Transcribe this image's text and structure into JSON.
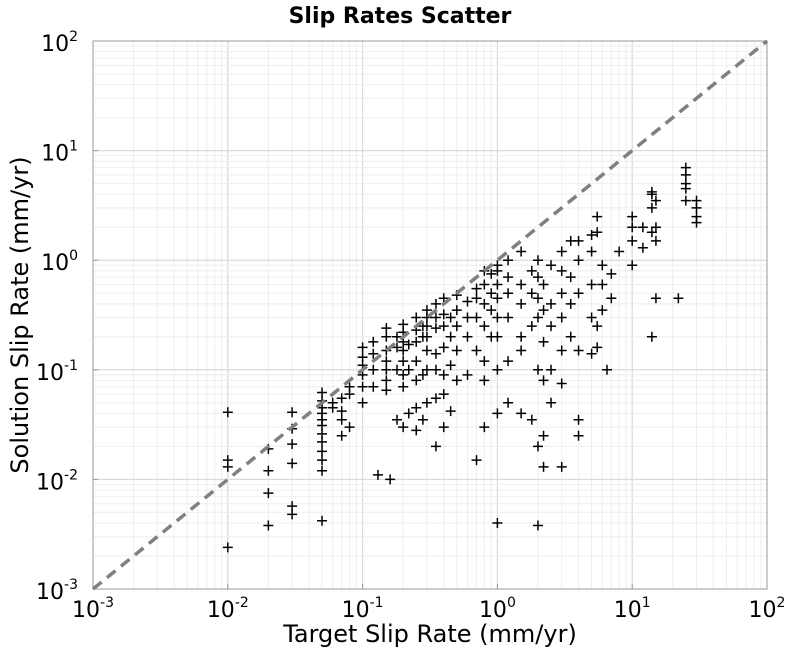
{
  "chart_data": {
    "type": "scatter",
    "title": "Slip Rates Scatter",
    "xlabel": "Target Slip Rate (mm/yr)",
    "ylabel": "Solution Slip Rate (mm/yr)",
    "xscale": "log",
    "yscale": "log",
    "xlim": [
      0.001,
      100
    ],
    "ylim": [
      0.001,
      100
    ],
    "grid": true,
    "legend": "none",
    "marker": "+",
    "x_ticks": [
      {
        "base": "10",
        "exp": "-3"
      },
      {
        "base": "10",
        "exp": "-2"
      },
      {
        "base": "10",
        "exp": "-1"
      },
      {
        "base": "10",
        "exp": "0"
      },
      {
        "base": "10",
        "exp": "1"
      },
      {
        "base": "10",
        "exp": "2"
      }
    ],
    "y_ticks": [
      {
        "base": "10",
        "exp": "-3"
      },
      {
        "base": "10",
        "exp": "-2"
      },
      {
        "base": "10",
        "exp": "-1"
      },
      {
        "base": "10",
        "exp": "0"
      },
      {
        "base": "10",
        "exp": "1"
      },
      {
        "base": "10",
        "exp": "2"
      }
    ],
    "reference_line": {
      "style": "dashed",
      "from": [
        0.001,
        0.001
      ],
      "to": [
        100,
        100
      ],
      "color": "#808080"
    },
    "colors": {
      "marker": "#000000",
      "grid": "#e6e6e6",
      "axes": "#999999"
    },
    "points": [
      [
        0.01,
        0.041
      ],
      [
        0.01,
        0.015
      ],
      [
        0.01,
        0.013
      ],
      [
        0.01,
        0.0024
      ],
      [
        0.02,
        0.0038
      ],
      [
        0.02,
        0.0075
      ],
      [
        0.02,
        0.012
      ],
      [
        0.02,
        0.019
      ],
      [
        0.03,
        0.0048
      ],
      [
        0.03,
        0.0057
      ],
      [
        0.03,
        0.014
      ],
      [
        0.03,
        0.021
      ],
      [
        0.03,
        0.029
      ],
      [
        0.03,
        0.041
      ],
      [
        0.05,
        0.0042
      ],
      [
        0.05,
        0.012
      ],
      [
        0.05,
        0.015
      ],
      [
        0.05,
        0.018
      ],
      [
        0.05,
        0.022
      ],
      [
        0.05,
        0.026
      ],
      [
        0.05,
        0.031
      ],
      [
        0.05,
        0.035
      ],
      [
        0.05,
        0.04
      ],
      [
        0.05,
        0.045
      ],
      [
        0.05,
        0.052
      ],
      [
        0.05,
        0.062
      ],
      [
        0.06,
        0.045
      ],
      [
        0.06,
        0.05
      ],
      [
        0.07,
        0.025
      ],
      [
        0.07,
        0.035
      ],
      [
        0.07,
        0.042
      ],
      [
        0.07,
        0.055
      ],
      [
        0.08,
        0.03
      ],
      [
        0.08,
        0.06
      ],
      [
        0.08,
        0.07
      ],
      [
        0.1,
        0.05
      ],
      [
        0.1,
        0.07
      ],
      [
        0.1,
        0.09
      ],
      [
        0.1,
        0.11
      ],
      [
        0.1,
        0.13
      ],
      [
        0.1,
        0.16
      ],
      [
        0.12,
        0.07
      ],
      [
        0.12,
        0.1
      ],
      [
        0.12,
        0.14
      ],
      [
        0.12,
        0.18
      ],
      [
        0.13,
        0.011
      ],
      [
        0.15,
        0.065
      ],
      [
        0.15,
        0.08
      ],
      [
        0.15,
        0.1
      ],
      [
        0.15,
        0.12
      ],
      [
        0.15,
        0.15
      ],
      [
        0.15,
        0.2
      ],
      [
        0.15,
        0.24
      ],
      [
        0.16,
        0.01
      ],
      [
        0.18,
        0.035
      ],
      [
        0.18,
        0.1
      ],
      [
        0.18,
        0.16
      ],
      [
        0.18,
        0.2
      ],
      [
        0.2,
        0.03
      ],
      [
        0.2,
        0.07
      ],
      [
        0.2,
        0.09
      ],
      [
        0.2,
        0.12
      ],
      [
        0.2,
        0.15
      ],
      [
        0.2,
        0.18
      ],
      [
        0.2,
        0.22
      ],
      [
        0.2,
        0.26
      ],
      [
        0.22,
        0.04
      ],
      [
        0.22,
        0.1
      ],
      [
        0.22,
        0.17
      ],
      [
        0.25,
        0.028
      ],
      [
        0.25,
        0.045
      ],
      [
        0.25,
        0.08
      ],
      [
        0.25,
        0.12
      ],
      [
        0.25,
        0.18
      ],
      [
        0.25,
        0.23
      ],
      [
        0.25,
        0.3
      ],
      [
        0.28,
        0.035
      ],
      [
        0.28,
        0.09
      ],
      [
        0.28,
        0.2
      ],
      [
        0.28,
        0.25
      ],
      [
        0.3,
        0.05
      ],
      [
        0.3,
        0.1
      ],
      [
        0.3,
        0.15
      ],
      [
        0.3,
        0.2
      ],
      [
        0.3,
        0.25
      ],
      [
        0.3,
        0.3
      ],
      [
        0.3,
        0.35
      ],
      [
        0.35,
        0.02
      ],
      [
        0.35,
        0.055
      ],
      [
        0.35,
        0.1
      ],
      [
        0.35,
        0.14
      ],
      [
        0.35,
        0.24
      ],
      [
        0.35,
        0.3
      ],
      [
        0.35,
        0.4
      ],
      [
        0.4,
        0.03
      ],
      [
        0.4,
        0.06
      ],
      [
        0.4,
        0.09
      ],
      [
        0.4,
        0.16
      ],
      [
        0.4,
        0.25
      ],
      [
        0.4,
        0.32
      ],
      [
        0.4,
        0.45
      ],
      [
        0.45,
        0.042
      ],
      [
        0.45,
        0.11
      ],
      [
        0.45,
        0.2
      ],
      [
        0.45,
        0.3
      ],
      [
        0.5,
        0.08
      ],
      [
        0.5,
        0.15
      ],
      [
        0.5,
        0.25
      ],
      [
        0.5,
        0.35
      ],
      [
        0.5,
        0.48
      ],
      [
        0.6,
        0.09
      ],
      [
        0.6,
        0.2
      ],
      [
        0.6,
        0.3
      ],
      [
        0.6,
        0.42
      ],
      [
        0.7,
        0.015
      ],
      [
        0.7,
        0.15
      ],
      [
        0.7,
        0.3
      ],
      [
        0.7,
        0.45
      ],
      [
        0.7,
        0.55
      ],
      [
        0.8,
        0.03
      ],
      [
        0.8,
        0.08
      ],
      [
        0.8,
        0.12
      ],
      [
        0.8,
        0.25
      ],
      [
        0.8,
        0.4
      ],
      [
        0.8,
        0.6
      ],
      [
        0.8,
        0.8
      ],
      [
        0.9,
        0.2
      ],
      [
        0.9,
        0.35
      ],
      [
        0.9,
        0.5
      ],
      [
        0.9,
        0.75
      ],
      [
        1.0,
        0.004
      ],
      [
        1.0,
        0.04
      ],
      [
        1.0,
        0.1
      ],
      [
        1.0,
        0.2
      ],
      [
        1.0,
        0.3
      ],
      [
        1.0,
        0.45
      ],
      [
        1.0,
        0.6
      ],
      [
        1.0,
        0.8
      ],
      [
        1.0,
        0.9
      ],
      [
        1.2,
        0.05
      ],
      [
        1.2,
        0.12
      ],
      [
        1.2,
        0.3
      ],
      [
        1.2,
        0.5
      ],
      [
        1.2,
        0.7
      ],
      [
        1.2,
        1.0
      ],
      [
        1.5,
        0.04
      ],
      [
        1.5,
        0.15
      ],
      [
        1.5,
        0.2
      ],
      [
        1.5,
        0.4
      ],
      [
        1.5,
        0.6
      ],
      [
        1.5,
        1.2
      ],
      [
        1.8,
        0.035
      ],
      [
        1.8,
        0.25
      ],
      [
        1.8,
        0.5
      ],
      [
        1.8,
        0.8
      ],
      [
        2.0,
        0.0038
      ],
      [
        2.0,
        0.02
      ],
      [
        2.0,
        0.1
      ],
      [
        2.0,
        0.3
      ],
      [
        2.0,
        0.45
      ],
      [
        2.0,
        0.7
      ],
      [
        2.0,
        1.0
      ],
      [
        2.2,
        0.013
      ],
      [
        2.2,
        0.025
      ],
      [
        2.2,
        0.08
      ],
      [
        2.2,
        0.18
      ],
      [
        2.2,
        0.35
      ],
      [
        2.2,
        0.6
      ],
      [
        2.5,
        0.05
      ],
      [
        2.5,
        0.1
      ],
      [
        2.5,
        0.25
      ],
      [
        2.5,
        0.4
      ],
      [
        2.5,
        0.9
      ],
      [
        3.0,
        0.013
      ],
      [
        3.0,
        0.075
      ],
      [
        3.0,
        0.15
      ],
      [
        3.0,
        0.3
      ],
      [
        3.0,
        0.5
      ],
      [
        3.0,
        0.8
      ],
      [
        3.0,
        1.2
      ],
      [
        3.5,
        0.2
      ],
      [
        3.5,
        0.4
      ],
      [
        3.5,
        0.7
      ],
      [
        3.5,
        1.5
      ],
      [
        4.0,
        0.025
      ],
      [
        4.0,
        0.035
      ],
      [
        4.0,
        0.15
      ],
      [
        4.0,
        0.5
      ],
      [
        4.0,
        1.0
      ],
      [
        4.0,
        1.5
      ],
      [
        5.0,
        0.14
      ],
      [
        5.0,
        0.3
      ],
      [
        5.0,
        0.6
      ],
      [
        5.0,
        1.2
      ],
      [
        5.0,
        1.7
      ],
      [
        5.5,
        0.16
      ],
      [
        5.5,
        0.25
      ],
      [
        5.5,
        1.8
      ],
      [
        5.5,
        2.5
      ],
      [
        6.0,
        0.35
      ],
      [
        6.0,
        0.6
      ],
      [
        6.0,
        0.9
      ],
      [
        6.5,
        0.1
      ],
      [
        7.0,
        0.45
      ],
      [
        7.0,
        0.75
      ],
      [
        8.0,
        1.2
      ],
      [
        10.0,
        0.9
      ],
      [
        10.0,
        1.5
      ],
      [
        10.0,
        2.0
      ],
      [
        10.0,
        2.5
      ],
      [
        12.0,
        2.0
      ],
      [
        12.0,
        1.3
      ],
      [
        14.0,
        0.2
      ],
      [
        14.0,
        1.8
      ],
      [
        14.0,
        3.0
      ],
      [
        14.0,
        4.0
      ],
      [
        14.0,
        4.2
      ],
      [
        15.0,
        0.45
      ],
      [
        15.0,
        1.5
      ],
      [
        15.0,
        2.0
      ],
      [
        15.0,
        3.5
      ],
      [
        22.0,
        0.45
      ],
      [
        25.0,
        3.5
      ],
      [
        25.0,
        4.5
      ],
      [
        25.0,
        5.0
      ],
      [
        25.0,
        6.0
      ],
      [
        25.0,
        7.0
      ],
      [
        30.0,
        2.2
      ],
      [
        30.0,
        2.5
      ],
      [
        30.0,
        3.0
      ],
      [
        30.0,
        3.5
      ]
    ]
  }
}
